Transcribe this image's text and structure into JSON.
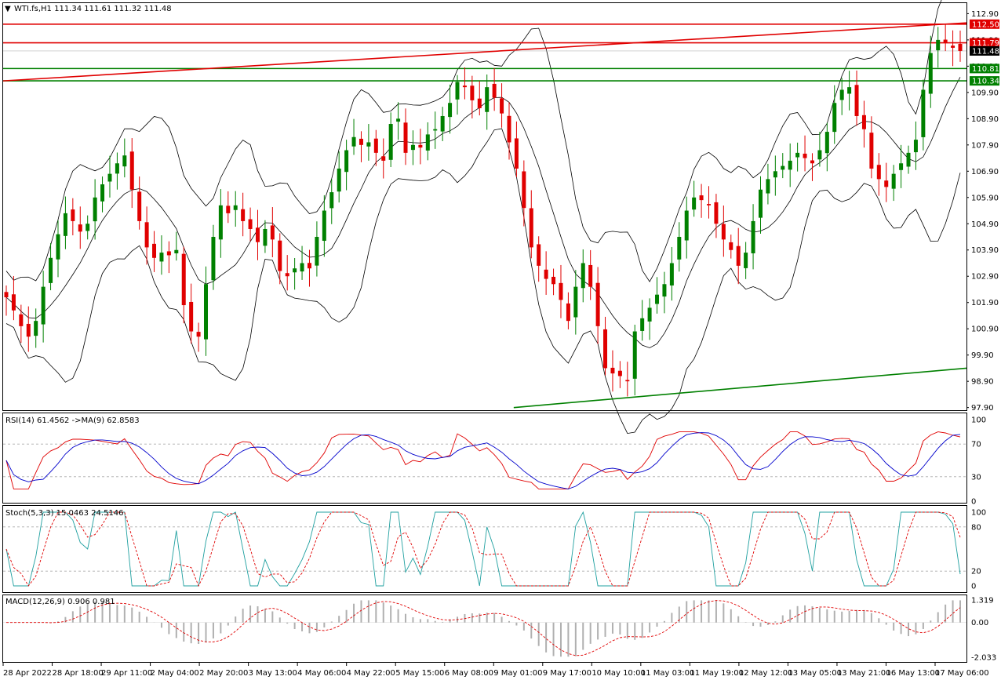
{
  "chart_data": [
    {
      "type": "candlestick",
      "panel": "price",
      "title": "WTI.fs,H1  111.34 111.61 111.32 111.48",
      "ohlc": {
        "open": 111.34,
        "high": 111.61,
        "low": 111.32,
        "close": 111.48
      },
      "y_ticks": [
        "112.90",
        "111.90",
        "110.90",
        "109.90",
        "108.90",
        "107.90",
        "106.90",
        "105.90",
        "104.90",
        "103.90",
        "102.90",
        "101.90",
        "100.90",
        "99.90",
        "98.90",
        "97.90"
      ],
      "ylim": [
        97.8,
        113.3
      ],
      "x_ticks": [
        "28 Apr 2022",
        "28 Apr 18:00",
        "29 Apr 11:00",
        "2 May 04:00",
        "2 May 20:00",
        "3 May 13:00",
        "4 May 06:00",
        "4 May 22:00",
        "5 May 15:00",
        "6 May 08:00",
        "9 May 01:00",
        "9 May 17:00",
        "10 May 10:00",
        "11 May 03:00",
        "11 May 19:00",
        "12 May 12:00",
        "13 May 05:00",
        "13 May 21:00",
        "16 May 13:00",
        "17 May 06:00"
      ],
      "price_tags": [
        {
          "value": "112.50",
          "color": "#e00000"
        },
        {
          "value": "111.79",
          "color": "#e00000"
        },
        {
          "value": "111.48",
          "color": "#000000"
        },
        {
          "value": "110.81",
          "color": "#008000"
        },
        {
          "value": "110.34",
          "color": "#008000"
        }
      ],
      "horizontal_levels": [
        {
          "value": 112.5,
          "color": "#e00000"
        },
        {
          "value": 111.79,
          "color": "#e00000"
        },
        {
          "value": 110.81,
          "color": "#008000"
        },
        {
          "value": 110.34,
          "color": "#008000"
        }
      ],
      "trendlines": [
        {
          "color": "#e00000",
          "from": [
            0,
            110.34
          ],
          "to": [
            1,
            112.55
          ]
        },
        {
          "color": "#008000",
          "from": [
            0.53,
            97.9
          ],
          "to": [
            1,
            99.4
          ]
        }
      ],
      "closes": [
        102.1,
        101.6,
        101.0,
        100.6,
        101.2,
        102.5,
        103.6,
        104.5,
        105.3,
        105.0,
        104.6,
        104.9,
        105.9,
        106.4,
        106.8,
        107.2,
        107.5,
        106.2,
        105.0,
        104.0,
        103.6,
        103.8,
        103.7,
        103.9,
        101.8,
        100.8,
        100.6,
        102.6,
        104.4,
        105.6,
        105.3,
        105.6,
        105.0,
        104.7,
        104.2,
        104.7,
        104.3,
        103.1,
        102.9,
        103.2,
        103.4,
        103.2,
        104.4,
        105.4,
        106.1,
        107.0,
        107.7,
        108.2,
        107.9,
        108.0,
        107.6,
        107.3,
        108.7,
        108.9,
        107.6,
        107.9,
        107.8,
        108.3,
        108.5,
        109.0,
        109.5,
        110.3,
        110.1,
        109.6,
        109.3,
        110.1,
        109.7,
        109.1,
        108.0,
        107.0,
        105.5,
        104.0,
        103.3,
        102.8,
        102.6,
        102.0,
        101.2,
        102.5,
        103.4,
        102.5,
        101.0,
        99.4,
        99.2,
        99.1,
        98.9,
        100.8,
        101.3,
        101.7,
        102.2,
        102.6,
        103.4,
        104.4,
        105.4,
        105.9,
        105.8,
        105.6,
        104.9,
        104.3,
        103.9,
        103.3,
        103.8,
        105.0,
        106.2,
        106.6,
        106.9,
        107.1,
        107.3,
        107.6,
        107.4,
        107.2,
        107.7,
        108.4,
        109.5,
        110.0,
        110.1,
        109.0,
        108.5,
        107.0,
        106.6,
        106.3,
        106.8,
        107.2,
        107.6,
        108.1,
        110.0,
        111.4,
        111.9,
        111.8,
        111.6,
        111.48
      ],
      "rsi": {
        "label": "RSI(14) 61.4562  ->MA(9) 62.8583",
        "ylim": [
          0,
          100
        ],
        "ticks": [
          "100",
          "70",
          "30",
          "0"
        ],
        "levels": [
          70,
          30
        ]
      },
      "stoch": {
        "label": "Stoch(5,3,3) 15.0463 24.5146",
        "ylim": [
          0,
          100
        ],
        "ticks": [
          "100",
          "80",
          "20",
          "0"
        ],
        "levels": [
          80,
          20
        ]
      },
      "macd": {
        "label": "MACD(12,26,9) 0.906 0.981",
        "ylim": [
          -2.033,
          1.319
        ],
        "ticks": [
          "1.319",
          "0.00",
          "-2.033"
        ]
      },
      "colors": {
        "up": "#008000",
        "down": "#e00000",
        "band": "#000000",
        "rsi": "#e00000",
        "rsi_ma": "#0000cc",
        "stoch_main": "#20a0a0",
        "stoch_signal": "#e00000",
        "macd_hist": "#b0b0b0",
        "macd_signal": "#e00000"
      }
    }
  ]
}
